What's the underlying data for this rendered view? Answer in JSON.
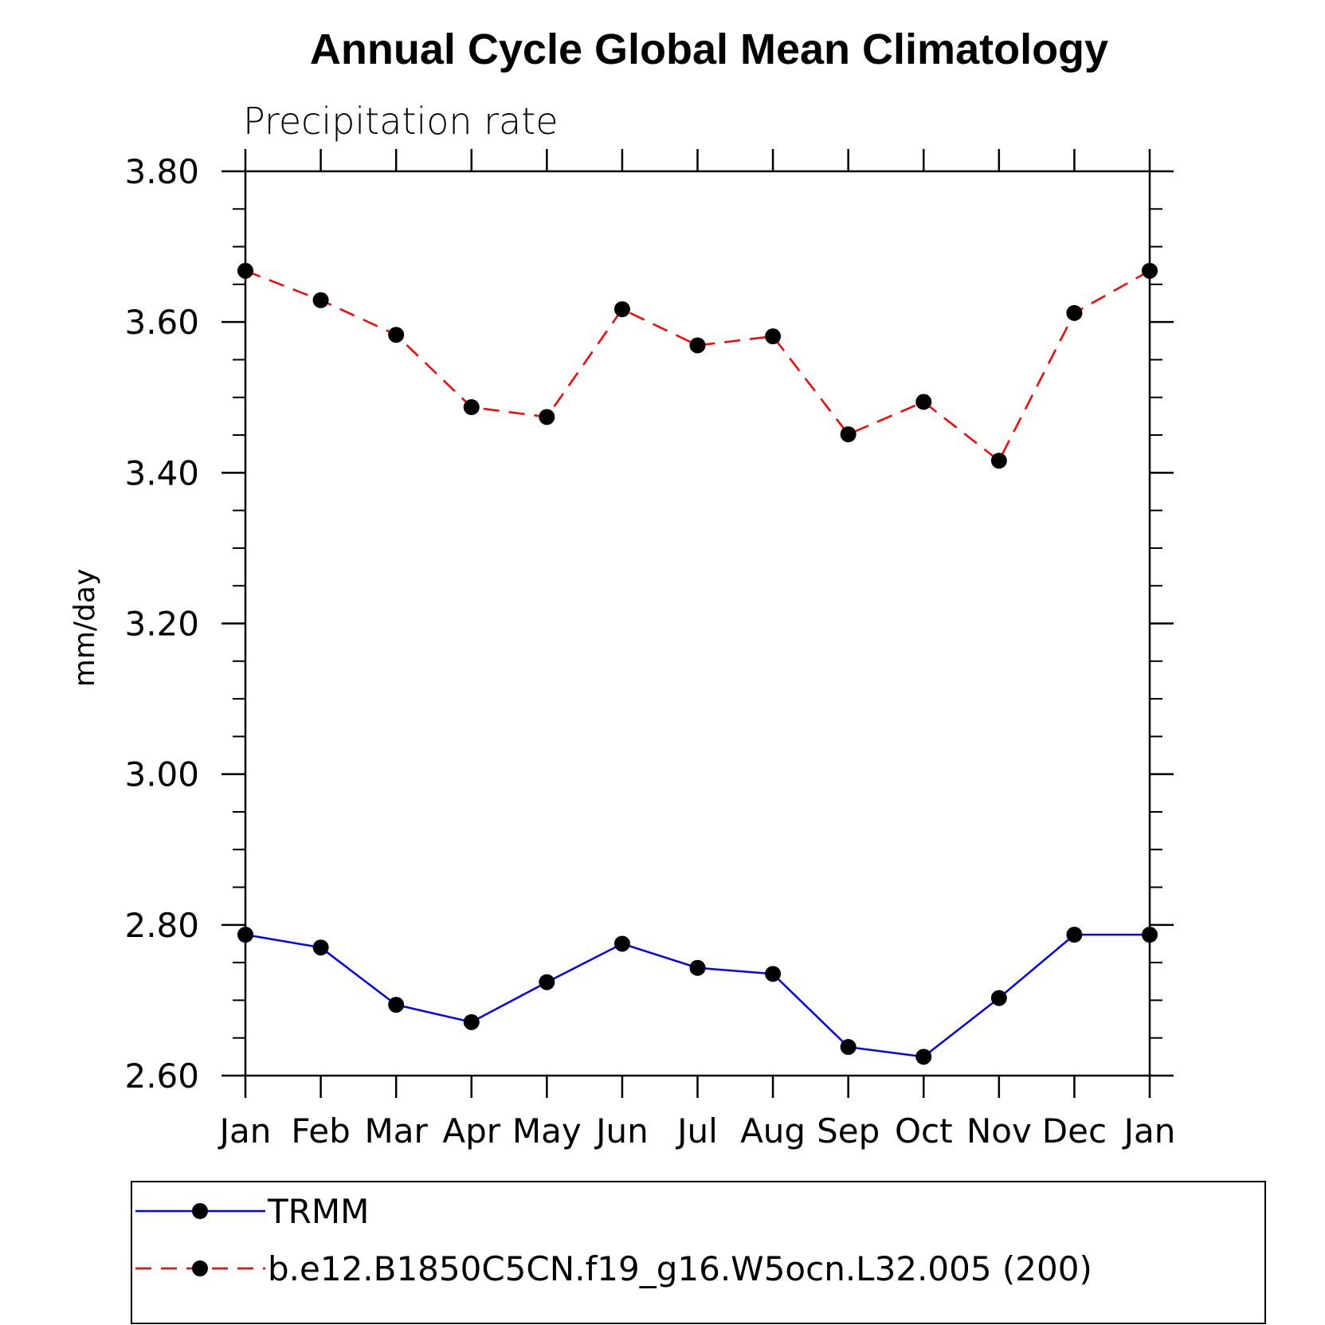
{
  "chart_data": {
    "type": "line",
    "title": "Annual Cycle Global Mean Climatology",
    "subtitle": "Precipitation rate",
    "xlabel": "",
    "ylabel": "mm/day",
    "categories": [
      "Jan",
      "Feb",
      "Mar",
      "Apr",
      "May",
      "Jun",
      "Jul",
      "Aug",
      "Sep",
      "Oct",
      "Nov",
      "Dec",
      "Jan"
    ],
    "ylim": [
      2.6,
      3.8
    ],
    "yticks": [
      "2.60",
      "2.80",
      "3.00",
      "3.20",
      "3.40",
      "3.60",
      "3.80"
    ],
    "grid": false,
    "legend_position": "bottom",
    "series": [
      {
        "name": "TRMM",
        "color": "#0000ff",
        "dash": "solid",
        "marker": "filled-circle",
        "values": [
          2.787,
          2.77,
          2.694,
          2.671,
          2.724,
          2.775,
          2.743,
          2.735,
          2.638,
          2.625,
          2.703,
          2.787,
          2.787
        ]
      },
      {
        "name": "b.e12.B1850C5CN.f19_g16.W5ocn.L32.005 (200)",
        "color": "#ff0000",
        "dash": "dashed",
        "marker": "filled-circle",
        "values": [
          3.668,
          3.629,
          3.583,
          3.487,
          3.474,
          3.617,
          3.569,
          3.581,
          3.451,
          3.494,
          3.416,
          3.612,
          3.668
        ]
      }
    ]
  }
}
